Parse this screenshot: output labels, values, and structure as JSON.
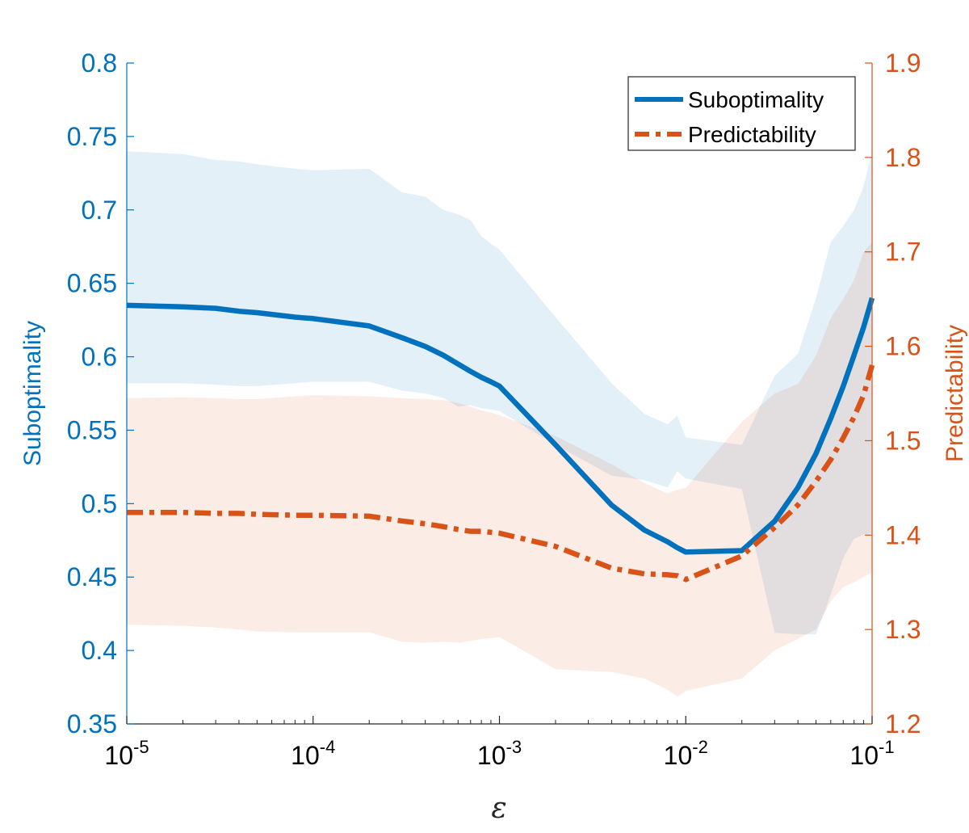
{
  "chart_data": {
    "type": "line",
    "x_scale": "log",
    "xlim": [
      1e-05,
      0.1
    ],
    "x_ticks": [
      {
        "base": "10",
        "exp": "-5"
      },
      {
        "base": "10",
        "exp": "-4"
      },
      {
        "base": "10",
        "exp": "-3"
      },
      {
        "base": "10",
        "exp": "-2"
      },
      {
        "base": "10",
        "exp": "-1"
      }
    ],
    "xlabel": "ε",
    "left_axis": {
      "label": "Suboptimality",
      "color": "#0072BD",
      "ylim": [
        0.35,
        0.8
      ],
      "ticks": [
        "0.35",
        "0.4",
        "0.45",
        "0.5",
        "0.55",
        "0.6",
        "0.65",
        "0.7",
        "0.75",
        "0.8"
      ]
    },
    "right_axis": {
      "label": "Predictability",
      "color": "#D95319",
      "ylim": [
        1.2,
        1.9
      ],
      "ticks": [
        "1.2",
        "1.3",
        "1.4",
        "1.5",
        "1.6",
        "1.7",
        "1.8",
        "1.9"
      ]
    },
    "legend_position": "top-right",
    "series": [
      {
        "name": "Suboptimality",
        "axis": "left",
        "color": "#0072BD",
        "line_style": "solid",
        "x": [
          1e-05,
          2e-05,
          3e-05,
          4e-05,
          5e-05,
          8e-05,
          0.0001,
          0.0002,
          0.0003,
          0.0004,
          0.0005,
          0.0006,
          0.0007,
          0.0008,
          0.0009,
          0.001,
          0.002,
          0.004,
          0.006,
          0.008,
          0.009,
          0.01,
          0.02,
          0.03,
          0.04,
          0.05,
          0.06,
          0.07,
          0.08,
          0.09,
          0.1
        ],
        "values": [
          0.635,
          0.634,
          0.633,
          0.631,
          0.63,
          0.627,
          0.626,
          0.621,
          0.613,
          0.607,
          0.601,
          0.595,
          0.59,
          0.586,
          0.583,
          0.58,
          0.54,
          0.499,
          0.482,
          0.474,
          0.47,
          0.467,
          0.468,
          0.488,
          0.511,
          0.534,
          0.558,
          0.58,
          0.601,
          0.62,
          0.64
        ],
        "band_upper": [
          0.74,
          0.738,
          0.734,
          0.733,
          0.731,
          0.728,
          0.727,
          0.728,
          0.712,
          0.709,
          0.7,
          0.697,
          0.693,
          0.682,
          0.677,
          0.673,
          0.627,
          0.582,
          0.561,
          0.554,
          0.56,
          0.545,
          0.54,
          0.587,
          0.602,
          0.64,
          0.678,
          0.689,
          0.7,
          0.716,
          0.74
        ],
        "band_lower": [
          0.582,
          0.582,
          0.581,
          0.58,
          0.58,
          0.582,
          0.583,
          0.583,
          0.577,
          0.575,
          0.572,
          0.566,
          0.567,
          0.565,
          0.564,
          0.563,
          0.54,
          0.519,
          0.516,
          0.511,
          0.522,
          0.517,
          0.51,
          0.412,
          0.411,
          0.411,
          0.438,
          0.463,
          0.476,
          0.479,
          0.48
        ]
      },
      {
        "name": "Predictability",
        "axis": "right",
        "color": "#D95319",
        "line_style": "dashed",
        "x": [
          1e-05,
          2e-05,
          3e-05,
          4e-05,
          5e-05,
          8e-05,
          0.0001,
          0.0002,
          0.0003,
          0.0004,
          0.0005,
          0.0006,
          0.0007,
          0.0008,
          0.0009,
          0.001,
          0.002,
          0.004,
          0.006,
          0.008,
          0.009,
          0.01,
          0.02,
          0.03,
          0.04,
          0.05,
          0.06,
          0.07,
          0.08,
          0.09,
          0.1
        ],
        "values": [
          1.424,
          1.424,
          1.423,
          1.423,
          1.422,
          1.421,
          1.421,
          1.42,
          1.415,
          1.412,
          1.409,
          1.406,
          1.404,
          1.404,
          1.403,
          1.402,
          1.388,
          1.365,
          1.359,
          1.358,
          1.357,
          1.353,
          1.378,
          1.408,
          1.432,
          1.457,
          1.48,
          1.503,
          1.525,
          1.548,
          1.58
        ],
        "band_upper": [
          1.545,
          1.546,
          1.545,
          1.544,
          1.544,
          1.547,
          1.548,
          1.547,
          1.545,
          1.544,
          1.543,
          1.54,
          1.536,
          1.532,
          1.53,
          1.527,
          1.505,
          1.475,
          1.455,
          1.444,
          1.448,
          1.45,
          1.52,
          1.55,
          1.56,
          1.59,
          1.63,
          1.65,
          1.67,
          1.7,
          1.71
        ],
        "band_lower": [
          1.305,
          1.304,
          1.302,
          1.3,
          1.298,
          1.297,
          1.297,
          1.297,
          1.287,
          1.286,
          1.287,
          1.286,
          1.288,
          1.29,
          1.291,
          1.292,
          1.258,
          1.255,
          1.248,
          1.236,
          1.229,
          1.235,
          1.248,
          1.278,
          1.29,
          1.3,
          1.33,
          1.345,
          1.35,
          1.356,
          1.36
        ]
      }
    ]
  }
}
